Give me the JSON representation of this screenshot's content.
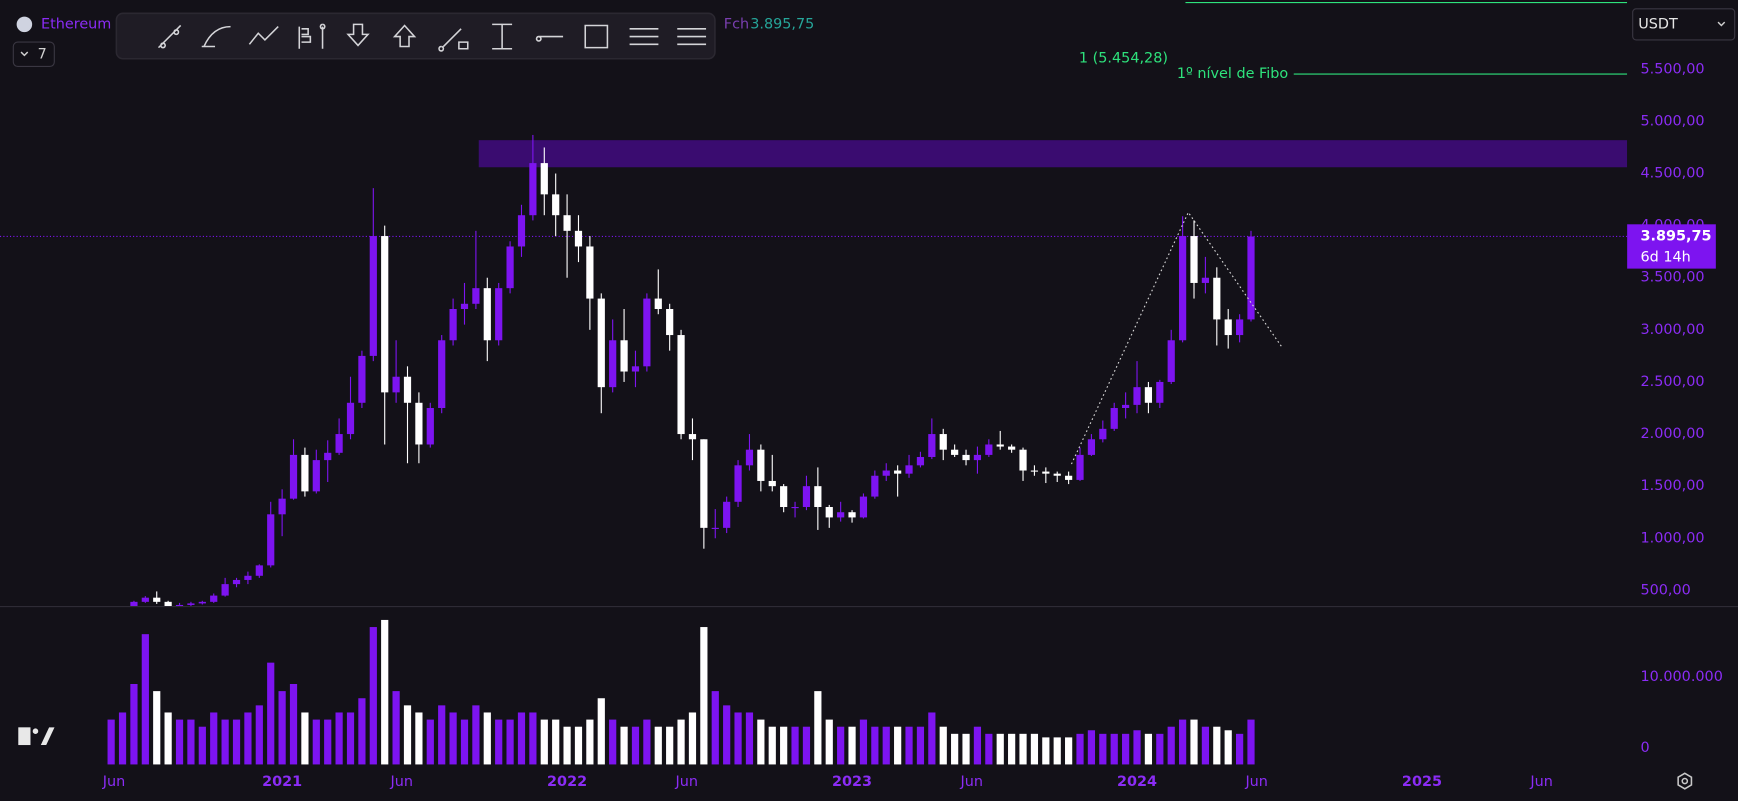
{
  "chart_data": {
    "type": "candlestick",
    "title": "Ethereum",
    "interval": "7",
    "currency": "USDT",
    "last": {
      "label": "Fch",
      "value": 3895.75,
      "value_label": "3.895,75",
      "countdown": "6d 14h"
    },
    "up_color": "#7d14f0",
    "down_color": "#ffffff",
    "x": [
      2020.4,
      2020.44,
      2020.48,
      2020.52,
      2020.56,
      2020.6,
      2020.64,
      2020.68,
      2020.72,
      2020.76,
      2020.8,
      2020.84,
      2020.88,
      2020.92,
      2020.96,
      2021,
      2021.04,
      2021.08,
      2021.12,
      2021.16,
      2021.2,
      2021.24,
      2021.28,
      2021.32,
      2021.36,
      2021.4,
      2021.44,
      2021.48,
      2021.52,
      2021.56,
      2021.6,
      2021.64,
      2021.68,
      2021.72,
      2021.76,
      2021.8,
      2021.84,
      2021.88,
      2021.92,
      2021.96,
      2022,
      2022.04,
      2022.08,
      2022.12,
      2022.16,
      2022.2,
      2022.24,
      2022.28,
      2022.32,
      2022.36,
      2022.4,
      2022.44,
      2022.48,
      2022.52,
      2022.56,
      2022.6,
      2022.64,
      2022.68,
      2022.72,
      2022.76,
      2022.8,
      2022.84,
      2022.88,
      2022.92,
      2022.96,
      2023,
      2023.04,
      2023.08,
      2023.12,
      2023.16,
      2023.2,
      2023.24,
      2023.28,
      2023.32,
      2023.36,
      2023.4,
      2023.44,
      2023.48,
      2023.52,
      2023.56,
      2023.6,
      2023.64,
      2023.68,
      2023.72,
      2023.76,
      2023.8,
      2023.84,
      2023.88,
      2023.92,
      2023.96,
      2024,
      2024.04,
      2024.08,
      2024.12,
      2024.16,
      2024.2,
      2024.24,
      2024.28,
      2024.32,
      2024.36,
      2024.4
    ],
    "open": [
      230,
      240,
      320,
      390,
      430,
      390,
      350,
      360,
      375,
      390,
      450,
      560,
      600,
      640,
      740,
      1230,
      1380,
      1800,
      1450,
      1750,
      1820,
      2000,
      2300,
      2750,
      3900,
      2400,
      2550,
      2300,
      1900,
      2250,
      2900,
      3200,
      3250,
      3400,
      2900,
      3400,
      3800,
      4100,
      4600,
      4300,
      4100,
      3950,
      3800,
      3300,
      2450,
      2900,
      2600,
      2650,
      3300,
      3200,
      2950,
      2000,
      1950,
      1100,
      1100,
      1350,
      1700,
      1850,
      1550,
      1500,
      1300,
      1300,
      1500,
      1300,
      1200,
      1250,
      1200,
      1400,
      1600,
      1650,
      1620,
      1700,
      1780,
      2000,
      1850,
      1800,
      1750,
      1800,
      1900,
      1880,
      1850,
      1650,
      1640,
      1620,
      1600,
      1560,
      1800,
      1950,
      2050,
      2250,
      2280,
      2450,
      2300,
      2500,
      2900,
      3900,
      3450,
      3500,
      3100,
      2950,
      3100
    ],
    "high": [
      250,
      330,
      400,
      445,
      490,
      400,
      380,
      390,
      400,
      470,
      620,
      620,
      680,
      750,
      1350,
      1470,
      1950,
      1870,
      1850,
      1940,
      2150,
      2550,
      2800,
      4360,
      4000,
      2900,
      2650,
      2400,
      2300,
      2950,
      3300,
      3450,
      3950,
      3500,
      3450,
      3850,
      4200,
      4870,
      4750,
      4500,
      4300,
      4100,
      3900,
      3350,
      3100,
      3200,
      2800,
      3350,
      3580,
      3250,
      3000,
      2150,
      1950,
      1280,
      1400,
      1750,
      2000,
      1900,
      1800,
      1520,
      1350,
      1600,
      1680,
      1320,
      1350,
      1270,
      1430,
      1650,
      1720,
      1700,
      1800,
      1830,
      2150,
      2050,
      1900,
      1850,
      1880,
      1950,
      2030,
      1900,
      1870,
      1700,
      1680,
      1640,
      1640,
      1870,
      2000,
      2130,
      2300,
      2400,
      2700,
      2500,
      2520,
      3000,
      4090,
      4050,
      3700,
      3600,
      3200,
      3150,
      3950
    ],
    "low": [
      220,
      235,
      310,
      380,
      370,
      330,
      340,
      350,
      365,
      380,
      440,
      530,
      560,
      620,
      720,
      1020,
      1370,
      1400,
      1430,
      1540,
      1800,
      1950,
      2250,
      2700,
      1900,
      2300,
      1720,
      1720,
      1870,
      2200,
      2850,
      3050,
      3200,
      2700,
      2850,
      3350,
      3700,
      4050,
      4100,
      3900,
      3500,
      3650,
      3000,
      2200,
      2400,
      2500,
      2450,
      2600,
      3150,
      2800,
      1950,
      1750,
      900,
      1000,
      1050,
      1300,
      1650,
      1450,
      1450,
      1250,
      1200,
      1270,
      1080,
      1100,
      1160,
      1150,
      1190,
      1380,
      1550,
      1400,
      1580,
      1680,
      1760,
      1750,
      1780,
      1700,
      1620,
      1780,
      1850,
      1820,
      1550,
      1600,
      1530,
      1540,
      1520,
      1550,
      1790,
      1920,
      2030,
      2150,
      2200,
      2200,
      2250,
      2480,
      2880,
      3300,
      3350,
      2850,
      2820,
      2880,
      3080
    ],
    "close": [
      240,
      320,
      390,
      430,
      390,
      350,
      360,
      375,
      390,
      450,
      560,
      600,
      640,
      740,
      1230,
      1380,
      1800,
      1450,
      1750,
      1820,
      2000,
      2300,
      2750,
      3900,
      2400,
      2550,
      2300,
      1900,
      2250,
      2900,
      3200,
      3250,
      3400,
      2900,
      3400,
      3800,
      4100,
      4600,
      4300,
      4100,
      3950,
      3800,
      3300,
      2450,
      2900,
      2600,
      2650,
      3300,
      3200,
      2950,
      2000,
      1950,
      1100,
      1100,
      1350,
      1700,
      1850,
      1550,
      1500,
      1300,
      1300,
      1500,
      1300,
      1200,
      1250,
      1200,
      1400,
      1600,
      1650,
      1620,
      1700,
      1780,
      2000,
      1850,
      1800,
      1750,
      1800,
      1900,
      1880,
      1850,
      1650,
      1640,
      1620,
      1600,
      1560,
      1800,
      1950,
      2050,
      2250,
      2280,
      2450,
      2300,
      2500,
      2900,
      3900,
      3450,
      3500,
      3100,
      2950,
      3100,
      3895.75
    ],
    "volume": [
      4000000,
      5000000,
      9000000,
      16000000,
      8000000,
      5000000,
      4000000,
      4000000,
      3000000,
      5000000,
      4000000,
      4000000,
      5000000,
      6000000,
      12000000,
      8000000,
      9000000,
      5000000,
      4000000,
      4000000,
      5000000,
      5000000,
      7000000,
      17000000,
      18000000,
      8000000,
      6000000,
      5000000,
      4000000,
      6000000,
      5000000,
      4000000,
      6000000,
      5000000,
      4000000,
      4000000,
      5000000,
      5000000,
      4000000,
      4000000,
      3000000,
      3000000,
      4000000,
      7000000,
      4000000,
      3000000,
      3000000,
      4000000,
      3000000,
      3000000,
      4000000,
      5000000,
      17000000,
      8000000,
      6000000,
      5000000,
      5000000,
      4000000,
      3000000,
      3000000,
      3000000,
      3000000,
      8000000,
      4000000,
      3000000,
      3000000,
      4000000,
      3000000,
      3000000,
      3000000,
      3000000,
      3000000,
      5000000,
      3000000,
      2000000,
      2000000,
      3000000,
      2000000,
      2000000,
      2000000,
      2000000,
      2000000,
      1500000,
      1500000,
      1500000,
      2000000,
      2500000,
      2000000,
      2000000,
      2000000,
      2500000,
      2000000,
      2000000,
      3000000,
      4000000,
      4000000,
      3000000,
      3000000,
      2500000,
      2000000,
      4000000
    ],
    "xlim": [
      2020.01,
      2025.72
    ],
    "xticks": [
      {
        "value": 2020.41,
        "label": "Jun"
      },
      2021,
      {
        "value": 2021.42,
        "label": "Jun"
      },
      2022,
      {
        "value": 2022.42,
        "label": "Jun"
      },
      2023,
      {
        "value": 2023.42,
        "label": "Jun"
      },
      2024,
      {
        "value": 2024.42,
        "label": "Jun"
      },
      2025,
      {
        "value": 2025.42,
        "label": "Jun"
      }
    ],
    "ylim": [
      350,
      6165
    ],
    "yticks": [
      {
        "value": 500,
        "label": "500,00"
      },
      {
        "value": 1000,
        "label": "1.000,00"
      },
      {
        "value": 1500,
        "label": "1.500,00"
      },
      {
        "value": 2000,
        "label": "2.000,00"
      },
      {
        "value": 2500,
        "label": "2.500,00"
      },
      {
        "value": 3000,
        "label": "3.000,00"
      },
      {
        "value": 3500,
        "label": "3.500,00"
      },
      {
        "value": 4000,
        "label": "4.000,00"
      },
      {
        "value": 4500,
        "label": "4.500,00"
      },
      {
        "value": 5000,
        "label": "5.000,00"
      },
      {
        "value": 5500,
        "label": "5.500,00"
      }
    ],
    "volume_ylim": [
      -2300000,
      19800000
    ],
    "volume_yticks": [
      0,
      {
        "value": 10000000,
        "label": "10.000.000"
      }
    ],
    "zone": {
      "from": 2021.69,
      "low": 4560,
      "high": 4820,
      "color": "#3a0c70"
    },
    "fibo": {
      "color": "#2ee27c",
      "levels": [
        {
          "value": 5454.28,
          "from": 2024.55,
          "label": "1 (5.454,28)",
          "name": "1º nível de Fibo"
        },
        {
          "value": 6140,
          "from": 2024.17
        }
      ]
    },
    "trend_line": {
      "x": [
        2023.77,
        2024.18,
        2024.51
      ],
      "y": [
        1712,
        4127,
        2828
      ],
      "color": "#d8d8d8"
    }
  }
}
